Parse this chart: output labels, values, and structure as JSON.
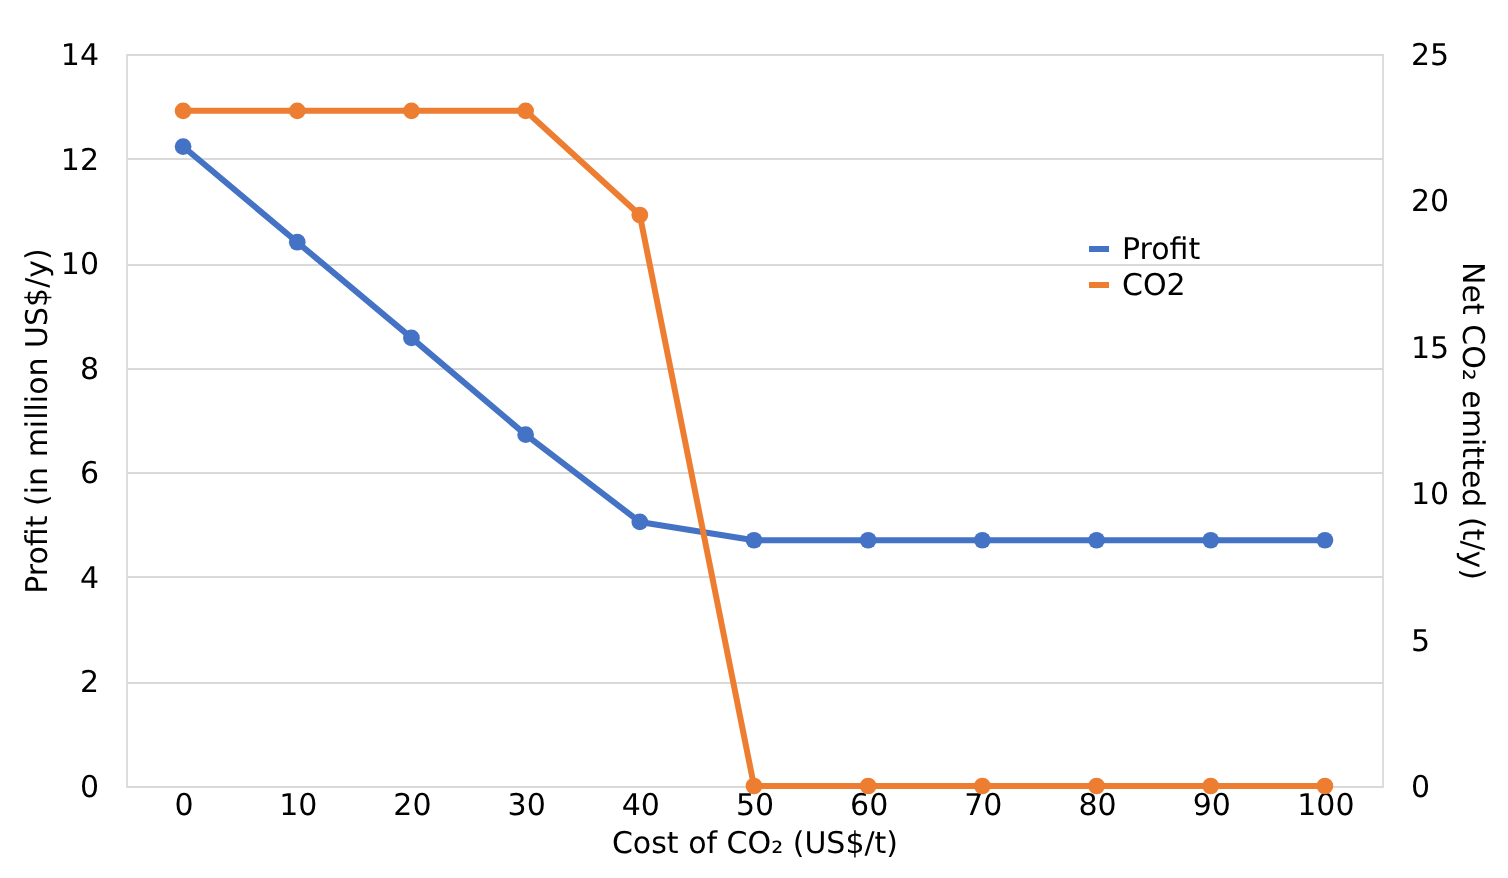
{
  "chart_data": {
    "type": "line",
    "xlabel": "Cost of CO₂ (US$/t)",
    "ylabel": "Profit (in million US$/y)",
    "y2label": "Net CO₂ emitted (t/y)",
    "categories": [
      "0",
      "10",
      "20",
      "30",
      "40",
      "50",
      "60",
      "70",
      "80",
      "90",
      "100"
    ],
    "series": [
      {
        "name": "Profit",
        "color": "#4472c4",
        "values": [
          12.23,
          10.4,
          8.57,
          6.72,
          5.05,
          4.7,
          4.7,
          4.7,
          4.7,
          4.7,
          4.7
        ]
      },
      {
        "name": "CO2",
        "color": "#ed7d31",
        "axis": "y2",
        "values": [
          23.06,
          23.06,
          23.06,
          23.06,
          19.5,
          0,
          0,
          0,
          0,
          0,
          0
        ]
      }
    ],
    "ylim": [
      0,
      14
    ],
    "yticks": [
      0,
      2,
      4,
      6,
      8,
      10,
      12,
      14
    ],
    "y2lim": [
      0,
      25
    ],
    "y2ticks": [
      0,
      5,
      10,
      15,
      20,
      25
    ],
    "grid": "y",
    "legend": "top right",
    "marker": "circle"
  }
}
